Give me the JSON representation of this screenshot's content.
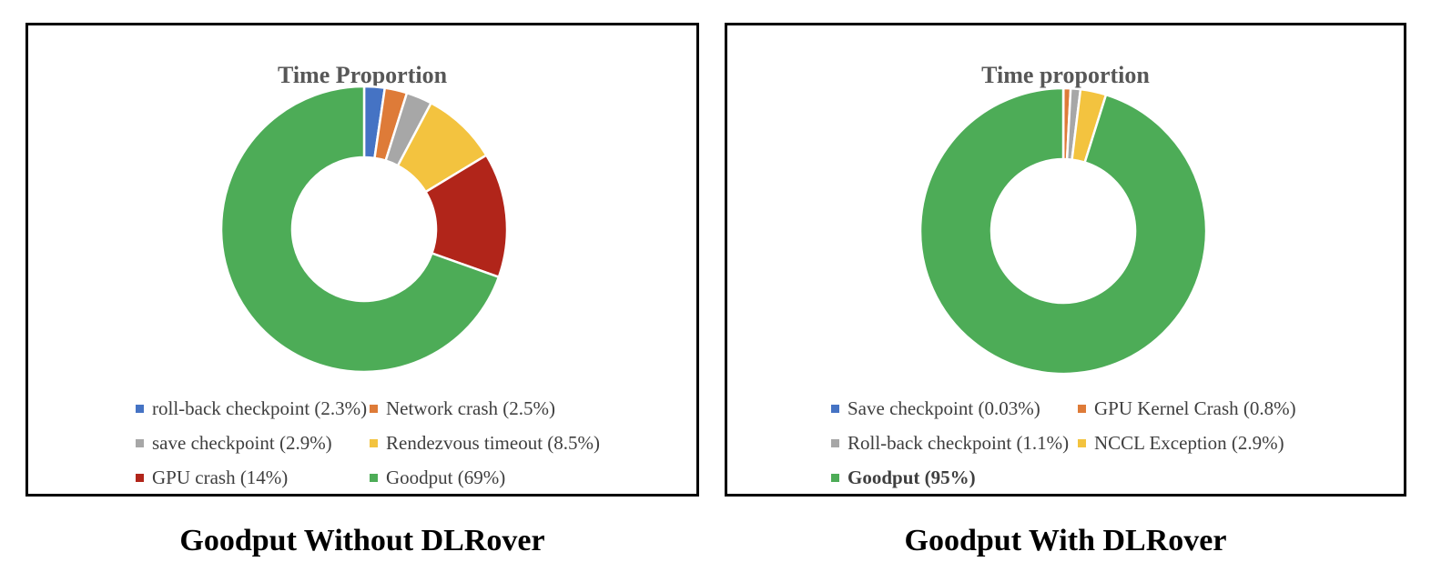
{
  "page": {
    "background": "#ffffff",
    "border_color": "#000000"
  },
  "chart_data": [
    {
      "type": "pie",
      "subtype": "donut",
      "title": "Time Proportion",
      "caption": "Goodput Without DLRover",
      "legend_position": "bottom",
      "start_angle_deg": 0,
      "direction": "clockwise",
      "donut_hole_ratio": 0.5,
      "slice_border_color": "#ffffff",
      "slices": [
        {
          "label": "roll-back checkpoint",
          "pct": 2.3,
          "legend_text": "roll-back checkpoint (2.3%)",
          "color": "#4573C4",
          "bold": false
        },
        {
          "label": "Network crash",
          "pct": 2.5,
          "legend_text": "Network crash (2.5%)",
          "color": "#DE7B38",
          "bold": false
        },
        {
          "label": "save checkpoint",
          "pct": 2.9,
          "legend_text": "save checkpoint (2.9%)",
          "color": "#A7A7A7",
          "bold": false
        },
        {
          "label": "Rendezvous timeout",
          "pct": 8.5,
          "legend_text": "Rendezvous timeout (8.5%)",
          "color": "#F3C33F",
          "bold": false
        },
        {
          "label": "GPU crash",
          "pct": 14,
          "legend_text": "GPU crash (14%)",
          "color": "#B1251A",
          "bold": false
        },
        {
          "label": "Goodput",
          "pct": 69,
          "legend_text": "Goodput (69%)",
          "color": "#4DAC57",
          "bold": false
        }
      ]
    },
    {
      "type": "pie",
      "subtype": "donut",
      "title": "Time proportion",
      "caption": "Goodput With DLRover",
      "legend_position": "bottom",
      "start_angle_deg": 0,
      "direction": "clockwise",
      "donut_hole_ratio": 0.5,
      "slice_border_color": "#ffffff",
      "slices": [
        {
          "label": "Save checkpoint",
          "pct": 0.03,
          "legend_text": "Save checkpoint (0.03%)",
          "color": "#4573C4",
          "bold": false
        },
        {
          "label": "GPU Kernel Crash",
          "pct": 0.8,
          "legend_text": "GPU Kernel Crash (0.8%)",
          "color": "#DE7B38",
          "bold": false
        },
        {
          "label": "Roll-back checkpoint",
          "pct": 1.1,
          "legend_text": "Roll-back checkpoint (1.1%)",
          "color": "#A7A7A7",
          "bold": false
        },
        {
          "label": "NCCL Exception",
          "pct": 2.9,
          "legend_text": "NCCL Exception (2.9%)",
          "color": "#F3C33F",
          "bold": false
        },
        {
          "label": "Goodput",
          "pct": 95,
          "legend_text": "Goodput (95%)",
          "color": "#4DAC57",
          "bold": true
        }
      ]
    }
  ]
}
